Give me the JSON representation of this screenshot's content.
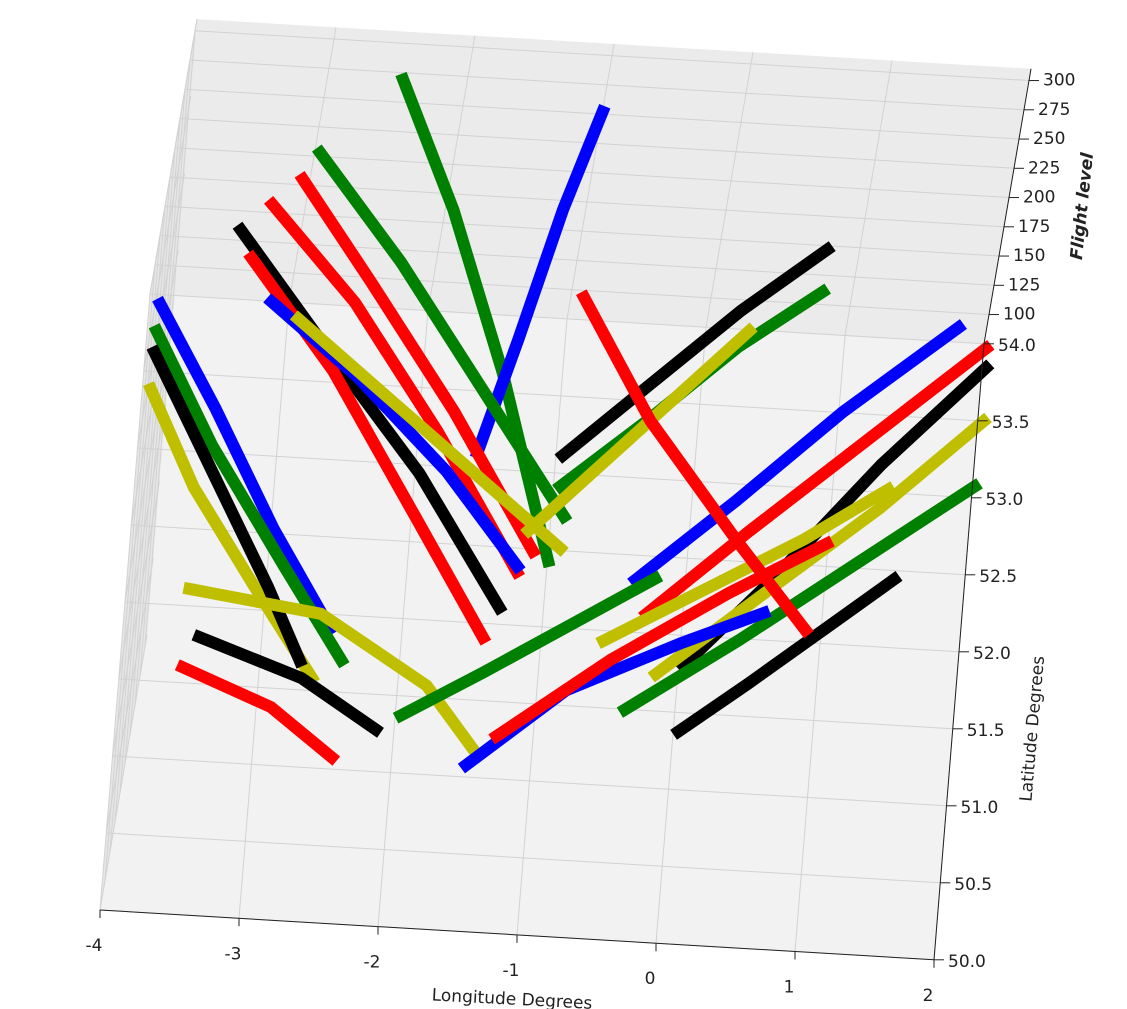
{
  "chart_data": {
    "type": "line3d",
    "x_label": "Longitude Degrees",
    "y_label": "Latitude Degrees",
    "z_label": "Flight level",
    "xlim": [
      -4,
      2
    ],
    "xticks": [
      -4,
      -3,
      -2,
      -1,
      0,
      1,
      2
    ],
    "ylim": [
      50,
      54
    ],
    "yticks": [
      {
        "value": 50,
        "label": "50.0"
      },
      50.5,
      {
        "value": 51,
        "label": "51.0"
      },
      51.5,
      {
        "value": 52,
        "label": "52.0"
      },
      52.5,
      {
        "value": 53,
        "label": "53.0"
      },
      53.5,
      {
        "value": 54,
        "label": "54.0"
      }
    ],
    "zlim": [
      75,
      310
    ],
    "zticks": [
      100,
      125,
      150,
      175,
      200,
      225,
      250,
      275,
      300
    ],
    "grid": true,
    "series": [
      {
        "color": "#008000",
        "x": [
          -2.5,
          -2.0,
          -1.5,
          -1.0
        ],
        "y": [
          53.8,
          53.4,
          52.9,
          52.2
        ],
        "z": [
          300,
          240,
          170,
          100
        ]
      },
      {
        "color": "#0000ff",
        "x": [
          -1.0,
          -1.2,
          -1.4,
          -1.6
        ],
        "y": [
          53.9,
          53.6,
          53.2,
          52.8
        ],
        "z": [
          270,
          220,
          160,
          110
        ]
      },
      {
        "color": "#ff0000",
        "x": [
          -3.3,
          -2.6,
          -1.9,
          -1.2
        ],
        "y": [
          53.7,
          53.3,
          52.8,
          52.2
        ],
        "z": [
          200,
          170,
          130,
          90
        ]
      },
      {
        "color": "#000000",
        "x": [
          -3.5,
          -2.8,
          -2.0,
          -1.3
        ],
        "y": [
          53.6,
          53.1,
          52.6,
          52.0
        ],
        "z": [
          190,
          160,
          120,
          85
        ]
      },
      {
        "color": "#ff0000",
        "x": [
          -3.4,
          -2.7,
          -2.0,
          -1.4
        ],
        "y": [
          53.5,
          53.0,
          52.4,
          51.8
        ],
        "z": [
          180,
          150,
          110,
          85
        ]
      },
      {
        "color": "#008000",
        "x": [
          -3.0,
          -2.3,
          -1.6,
          -0.9
        ],
        "y": [
          53.9,
          53.5,
          53.0,
          52.5
        ],
        "z": [
          220,
          180,
          140,
          100
        ]
      },
      {
        "color": "#ff0000",
        "x": [
          -3.1,
          -2.5,
          -1.8,
          -1.1
        ],
        "y": [
          53.8,
          53.4,
          52.9,
          52.3
        ],
        "z": [
          210,
          175,
          135,
          95
        ]
      },
      {
        "color": "#0000ff",
        "x": [
          -4.0,
          -3.5,
          -3.0,
          -2.5
        ],
        "y": [
          53.4,
          52.9,
          52.3,
          51.8
        ],
        "z": [
          150,
          125,
          105,
          85
        ]
      },
      {
        "color": "#008000",
        "x": [
          -4.0,
          -3.5,
          -2.9,
          -2.4
        ],
        "y": [
          53.3,
          52.7,
          52.1,
          51.6
        ],
        "z": [
          140,
          120,
          100,
          85
        ]
      },
      {
        "color": "#bfbf00",
        "x": [
          -4.0,
          -3.6,
          -3.1,
          -2.6
        ],
        "y": [
          53.0,
          52.5,
          52.0,
          51.5
        ],
        "z": [
          130,
          110,
          95,
          82
        ]
      },
      {
        "color": "#000000",
        "x": [
          -4.0,
          -3.5,
          -3.0,
          -2.7
        ],
        "y": [
          53.2,
          52.6,
          52.0,
          51.6
        ],
        "z": [
          135,
          115,
          95,
          82
        ]
      },
      {
        "color": "#0000ff",
        "x": [
          -3.2,
          -2.5,
          -1.8,
          -1.2
        ],
        "y": [
          53.6,
          53.2,
          52.7,
          52.2
        ],
        "z": [
          130,
          120,
          110,
          95
        ]
      },
      {
        "color": "#bfbf00",
        "x": [
          -3.0,
          -2.3,
          -1.6,
          -0.9
        ],
        "y": [
          53.5,
          53.1,
          52.7,
          52.3
        ],
        "z": [
          130,
          120,
          110,
          100
        ]
      },
      {
        "color": "#0000ff",
        "x": [
          1.8,
          1.0,
          0.3,
          -0.4
        ],
        "y": [
          53.7,
          53.2,
          52.7,
          52.2
        ],
        "z": [
          130,
          115,
          100,
          90
        ]
      },
      {
        "color": "#ff0000",
        "x": [
          2.0,
          1.2,
          0.4,
          -0.3
        ],
        "y": [
          53.5,
          53.0,
          52.5,
          52.0
        ],
        "z": [
          140,
          120,
          100,
          88
        ]
      },
      {
        "color": "#000000",
        "x": [
          2.0,
          1.3,
          0.6,
          0.0
        ],
        "y": [
          53.3,
          52.8,
          52.2,
          51.7
        ],
        "z": [
          150,
          125,
          100,
          85
        ]
      },
      {
        "color": "#bfbf00",
        "x": [
          2.0,
          1.3,
          0.5,
          -0.2
        ],
        "y": [
          52.8,
          52.4,
          52.0,
          51.6
        ],
        "z": [
          170,
          140,
          110,
          90
        ]
      },
      {
        "color": "#008000",
        "x": [
          2.0,
          1.2,
          0.4,
          -0.4
        ],
        "y": [
          52.6,
          52.2,
          51.8,
          51.4
        ],
        "z": [
          140,
          120,
          100,
          85
        ]
      },
      {
        "color": "#000000",
        "x": [
          0.8,
          0.2,
          -0.4,
          -1.0
        ],
        "y": [
          54.0,
          53.7,
          53.3,
          52.9
        ],
        "z": [
          150,
          130,
          115,
          100
        ]
      },
      {
        "color": "#008000",
        "x": [
          0.8,
          0.2,
          -0.4,
          -1.0
        ],
        "y": [
          53.8,
          53.5,
          53.1,
          52.7
        ],
        "z": [
          140,
          125,
          110,
          100
        ]
      },
      {
        "color": "#bfbf00",
        "x": [
          0.3,
          -0.2,
          -0.7,
          -1.2
        ],
        "y": [
          53.6,
          53.2,
          52.8,
          52.4
        ],
        "z": [
          130,
          120,
          110,
          100
        ]
      },
      {
        "color": "#ff0000",
        "x": [
          -3.6,
          -2.9,
          -2.4
        ],
        "y": [
          51.5,
          51.3,
          51.0
        ],
        "z": [
          90,
          85,
          82
        ]
      },
      {
        "color": "#000000",
        "x": [
          -3.5,
          -2.7,
          -2.1
        ],
        "y": [
          51.7,
          51.5,
          51.2
        ],
        "z": [
          90,
          85,
          82
        ]
      },
      {
        "color": "#bfbf00",
        "x": [
          -3.6,
          -2.6,
          -1.8,
          -1.4
        ],
        "y": [
          52.0,
          51.9,
          51.5,
          51.1
        ],
        "z": [
          90,
          88,
          85,
          82
        ]
      },
      {
        "color": "#0000ff",
        "x": [
          -1.5,
          -0.8,
          0.0,
          0.6
        ],
        "y": [
          51.0,
          51.5,
          51.8,
          52.0
        ],
        "z": [
          82,
          88,
          95,
          100
        ]
      },
      {
        "color": "#ff0000",
        "x": [
          -1.3,
          -0.5,
          0.3,
          1.0
        ],
        "y": [
          51.2,
          51.7,
          52.1,
          52.4
        ],
        "z": [
          82,
          90,
          100,
          110
        ]
      },
      {
        "color": "#000000",
        "x": [
          0.0,
          0.5,
          1.0,
          1.5
        ],
        "y": [
          51.3,
          51.6,
          51.9,
          52.2
        ],
        "z": [
          82,
          90,
          100,
          110
        ]
      },
      {
        "color": "#008000",
        "x": [
          -2.0,
          -1.4,
          -0.8,
          -0.2
        ],
        "y": [
          51.3,
          51.6,
          51.9,
          52.2
        ],
        "z": [
          82,
          86,
          92,
          98
        ]
      },
      {
        "color": "#bfbf00",
        "x": [
          -0.6,
          0.1,
          0.8,
          1.4
        ],
        "y": [
          51.8,
          52.1,
          52.4,
          52.7
        ],
        "z": [
          90,
          100,
          110,
          120
        ]
      },
      {
        "color": "#ff0000",
        "x": [
          -1.0,
          -0.4,
          0.3,
          0.9
        ],
        "y": [
          53.3,
          52.8,
          52.3,
          51.9
        ],
        "z": [
          190,
          150,
          120,
          95
        ]
      }
    ]
  }
}
